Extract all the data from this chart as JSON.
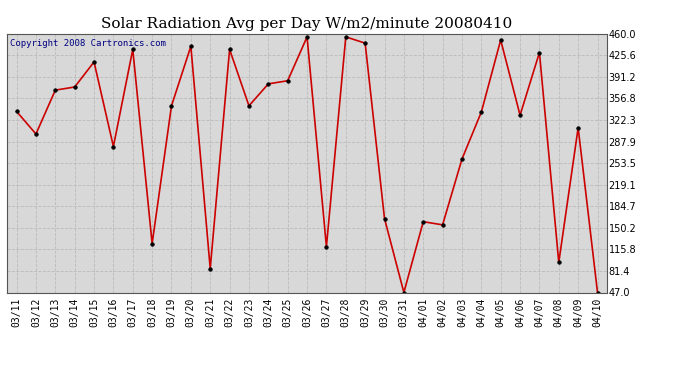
{
  "title": "Solar Radiation Avg per Day W/m2/minute 20080410",
  "copyright": "Copyright 2008 Cartronics.com",
  "dates": [
    "03/11",
    "03/12",
    "03/13",
    "03/14",
    "03/15",
    "03/16",
    "03/17",
    "03/18",
    "03/19",
    "03/20",
    "03/21",
    "03/22",
    "03/23",
    "03/24",
    "03/25",
    "03/26",
    "03/27",
    "03/28",
    "03/29",
    "03/30",
    "03/31",
    "04/01",
    "04/02",
    "04/03",
    "04/04",
    "04/05",
    "04/06",
    "04/07",
    "04/08",
    "04/09",
    "04/10"
  ],
  "values": [
    336,
    300,
    370,
    375,
    415,
    280,
    435,
    125,
    345,
    440,
    85,
    435,
    345,
    380,
    385,
    455,
    120,
    455,
    445,
    165,
    47,
    160,
    155,
    260,
    335,
    450,
    330,
    430,
    95,
    310,
    47
  ],
  "line_color": "#cc0000",
  "marker_color": "#000000",
  "bg_color": "#d8d8d8",
  "grid_color": "#bbbbbb",
  "ylim_min": 47.0,
  "ylim_max": 460.0,
  "yticks": [
    47.0,
    81.4,
    115.8,
    150.2,
    184.7,
    219.1,
    253.5,
    287.9,
    322.3,
    356.8,
    391.2,
    425.6,
    460.0
  ],
  "title_fontsize": 11,
  "copyright_fontsize": 6.5,
  "tick_fontsize": 7
}
